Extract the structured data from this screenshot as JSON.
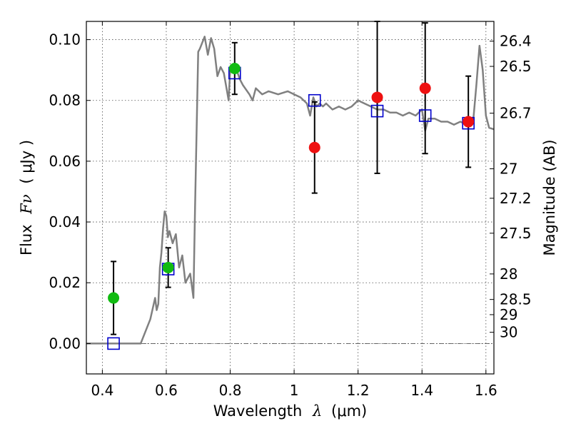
{
  "chart_data": {
    "type": "scatter",
    "xlabel": "Wavelength",
    "xlabel_symbol": "λ",
    "xlabel_unit": "(μm)",
    "ylabel": "Flux",
    "ylabel_symbol": "Fν",
    "ylabel_unit": "( μJy )",
    "y2label": "Magnitude (AB)",
    "xlim": [
      0.35,
      1.625
    ],
    "ylim": [
      -0.01,
      0.106
    ],
    "grid": true,
    "x_ticks": [
      {
        "value": 0.4,
        "label": "0.4"
      },
      {
        "value": 0.6,
        "label": "0.6"
      },
      {
        "value": 0.8,
        "label": "0.8"
      },
      {
        "value": 1.0,
        "label": "1"
      },
      {
        "value": 1.2,
        "label": "1.2"
      },
      {
        "value": 1.4,
        "label": "1.4"
      },
      {
        "value": 1.6,
        "label": "1.6"
      }
    ],
    "y_ticks": [
      {
        "value": 0.0,
        "label": "0.00"
      },
      {
        "value": 0.02,
        "label": "0.02"
      },
      {
        "value": 0.04,
        "label": "0.04"
      },
      {
        "value": 0.06,
        "label": "0.06"
      },
      {
        "value": 0.08,
        "label": "0.08"
      },
      {
        "value": 0.1,
        "label": "0.10"
      }
    ],
    "mag_ticks": [
      {
        "label": "26.4",
        "flux": 0.0995
      },
      {
        "label": "26.5",
        "flux": 0.0912
      },
      {
        "label": "26.7",
        "flux": 0.0758
      },
      {
        "label": "27",
        "flux": 0.0575
      },
      {
        "label": "27.2",
        "flux": 0.0478
      },
      {
        "label": "27.5",
        "flux": 0.0363
      },
      {
        "label": "28",
        "flux": 0.0229
      },
      {
        "label": "28.5",
        "flux": 0.0145
      },
      {
        "label": "29",
        "flux": 0.0095
      },
      {
        "label": "30",
        "flux": 0.0037
      }
    ],
    "series": [
      {
        "name": "model_sed",
        "kind": "line",
        "color": "#808080",
        "x": [
          0.35,
          0.5,
          0.52,
          0.55,
          0.565,
          0.57,
          0.575,
          0.58,
          0.585,
          0.59,
          0.595,
          0.6,
          0.605,
          0.61,
          0.62,
          0.63,
          0.64,
          0.65,
          0.66,
          0.675,
          0.685,
          0.69,
          0.7,
          0.705,
          0.72,
          0.73,
          0.74,
          0.75,
          0.76,
          0.77,
          0.78,
          0.79,
          0.795,
          0.8,
          0.81,
          0.82,
          0.83,
          0.84,
          0.86,
          0.87,
          0.88,
          0.9,
          0.92,
          0.95,
          0.98,
          1.0,
          1.02,
          1.04,
          1.05,
          1.06,
          1.07,
          1.08,
          1.09,
          1.1,
          1.12,
          1.14,
          1.16,
          1.18,
          1.2,
          1.22,
          1.24,
          1.26,
          1.28,
          1.3,
          1.32,
          1.34,
          1.36,
          1.38,
          1.4,
          1.41,
          1.42,
          1.44,
          1.46,
          1.48,
          1.5,
          1.52,
          1.54,
          1.56,
          1.57,
          1.58,
          1.59,
          1.6,
          1.61,
          1.625
        ],
        "y": [
          0.0,
          0.0,
          0.0,
          0.008,
          0.015,
          0.011,
          0.013,
          0.025,
          0.03,
          0.038,
          0.0435,
          0.042,
          0.035,
          0.037,
          0.033,
          0.036,
          0.025,
          0.029,
          0.02,
          0.023,
          0.015,
          0.045,
          0.096,
          0.097,
          0.101,
          0.095,
          0.1005,
          0.097,
          0.088,
          0.091,
          0.089,
          0.083,
          0.08,
          0.09,
          0.0915,
          0.09,
          0.087,
          0.085,
          0.082,
          0.08,
          0.084,
          0.082,
          0.083,
          0.082,
          0.083,
          0.082,
          0.081,
          0.079,
          0.075,
          0.081,
          0.078,
          0.079,
          0.078,
          0.079,
          0.077,
          0.078,
          0.077,
          0.078,
          0.08,
          0.079,
          0.078,
          0.077,
          0.077,
          0.076,
          0.076,
          0.075,
          0.076,
          0.075,
          0.077,
          0.07,
          0.074,
          0.074,
          0.073,
          0.073,
          0.072,
          0.073,
          0.072,
          0.073,
          0.085,
          0.098,
          0.09,
          0.075,
          0.071,
          0.0705
        ]
      },
      {
        "name": "model_photometry",
        "kind": "open-square",
        "color": "#0000cc",
        "x": [
          0.435,
          0.606,
          0.814,
          1.064,
          1.26,
          1.41,
          1.545
        ],
        "y": [
          0.0,
          0.0245,
          0.089,
          0.08,
          0.0765,
          0.075,
          0.0725
        ]
      },
      {
        "name": "detections",
        "kind": "filled-circle",
        "color": "#11bb11",
        "x": [
          0.435,
          0.606,
          0.814
        ],
        "y": [
          0.015,
          0.025,
          0.0905
        ],
        "yerr_low": [
          0.012,
          0.0065,
          0.0085
        ],
        "yerr_high": [
          0.012,
          0.0065,
          0.0085
        ]
      },
      {
        "name": "measurements",
        "kind": "filled-circle",
        "color": "#ee1111",
        "x": [
          1.064,
          1.26,
          1.41,
          1.545
        ],
        "y": [
          0.0645,
          0.081,
          0.084,
          0.073
        ],
        "yerr_low": [
          0.015,
          0.025,
          0.0215,
          0.015
        ],
        "yerr_high": [
          0.015,
          0.025,
          0.0215,
          0.015
        ]
      }
    ]
  }
}
